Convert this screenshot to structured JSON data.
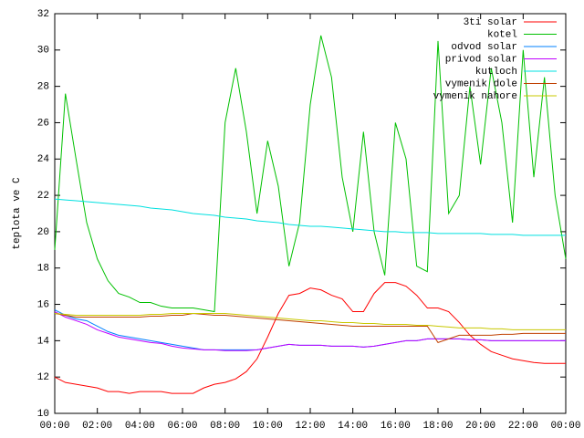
{
  "chart_data": {
    "type": "line",
    "y_label": "teplota ve C",
    "x": [
      0,
      0.5,
      1,
      1.5,
      2,
      2.5,
      3,
      3.5,
      4,
      4.5,
      5,
      5.5,
      6,
      6.5,
      7,
      7.5,
      8,
      8.5,
      9,
      9.5,
      10,
      10.5,
      11,
      11.5,
      12,
      12.5,
      13,
      13.5,
      14,
      14.5,
      15,
      15.5,
      16,
      16.5,
      17,
      17.5,
      18,
      18.5,
      19,
      19.5,
      20,
      20.5,
      21,
      21.5,
      22,
      22.5,
      23,
      23.5,
      24
    ],
    "series": [
      {
        "name": "3ti solar",
        "color": "#ff0000",
        "values": [
          12,
          11.7,
          11.6,
          11.5,
          11.4,
          11.2,
          11.2,
          11.1,
          11.2,
          11.2,
          11.2,
          11.1,
          11.1,
          11.1,
          11.4,
          11.6,
          11.7,
          11.9,
          12.3,
          13,
          14.2,
          15.5,
          16.5,
          16.6,
          16.9,
          16.8,
          16.5,
          16.3,
          15.6,
          15.6,
          16.6,
          17.2,
          17.2,
          17,
          16.5,
          15.8,
          15.8,
          15.6,
          15,
          14.3,
          13.8,
          13.4,
          13.2,
          13,
          12.9,
          12.8,
          12.75,
          12.75,
          12.75
        ]
      },
      {
        "name": "kotel",
        "color": "#00c000",
        "values": [
          19,
          27.6,
          24,
          20.5,
          18.5,
          17.3,
          16.6,
          16.4,
          16.1,
          16.1,
          15.9,
          15.8,
          15.8,
          15.8,
          15.7,
          15.6,
          26,
          29,
          25.5,
          21,
          25,
          22.5,
          18.1,
          20.5,
          27,
          30.8,
          28.5,
          23,
          20,
          25.5,
          20,
          17.6,
          26,
          24,
          18.1,
          17.8,
          30.5,
          21,
          22,
          28,
          23.7,
          29,
          26,
          20.5,
          30,
          23,
          28.5,
          22,
          18.5
        ]
      },
      {
        "name": "odvod solar",
        "color": "#0080ff",
        "values": [
          15.7,
          15.4,
          15.2,
          15.1,
          14.8,
          14.5,
          14.3,
          14.2,
          14.1,
          14,
          13.9,
          13.8,
          13.7,
          13.6,
          13.5,
          13.5,
          13.5,
          13.5,
          13.5,
          13.5,
          13.6,
          13.7,
          13.8,
          13.75,
          13.75,
          13.75,
          13.7,
          13.7,
          13.7,
          13.65,
          13.7,
          13.8,
          13.9,
          14,
          14,
          14.1,
          14.1,
          14.1,
          14.1,
          14.05,
          14.05,
          14,
          14,
          14,
          14,
          14,
          14,
          14,
          14
        ]
      },
      {
        "name": "privod solar",
        "color": "#c000ff",
        "values": [
          15.6,
          15.3,
          15.1,
          14.9,
          14.6,
          14.4,
          14.2,
          14.1,
          14,
          13.9,
          13.85,
          13.7,
          13.6,
          13.55,
          13.5,
          13.5,
          13.45,
          13.45,
          13.45,
          13.5,
          13.6,
          13.7,
          13.8,
          13.75,
          13.75,
          13.75,
          13.7,
          13.7,
          13.7,
          13.65,
          13.7,
          13.8,
          13.9,
          14,
          14,
          14.1,
          14.1,
          14.1,
          14.1,
          14.05,
          14.05,
          14,
          14,
          14,
          14,
          14,
          14,
          14,
          14
        ]
      },
      {
        "name": "kutloch",
        "color": "#00e0e0",
        "values": [
          21.8,
          21.75,
          21.7,
          21.65,
          21.6,
          21.55,
          21.5,
          21.45,
          21.4,
          21.3,
          21.25,
          21.2,
          21.1,
          21,
          20.95,
          20.9,
          20.8,
          20.75,
          20.7,
          20.6,
          20.55,
          20.5,
          20.4,
          20.35,
          20.3,
          20.3,
          20.25,
          20.2,
          20.15,
          20.1,
          20.05,
          20,
          20,
          19.95,
          19.95,
          19.95,
          19.9,
          19.9,
          19.9,
          19.9,
          19.9,
          19.85,
          19.85,
          19.85,
          19.8,
          19.8,
          19.8,
          19.8,
          19.8
        ]
      },
      {
        "name": "vymenik dole",
        "color": "#c04000",
        "values": [
          15.5,
          15.4,
          15.3,
          15.3,
          15.3,
          15.3,
          15.3,
          15.3,
          15.3,
          15.35,
          15.35,
          15.4,
          15.4,
          15.5,
          15.45,
          15.4,
          15.4,
          15.35,
          15.3,
          15.25,
          15.2,
          15.15,
          15.1,
          15.05,
          15,
          14.95,
          14.9,
          14.85,
          14.8,
          14.8,
          14.8,
          14.8,
          14.8,
          14.8,
          14.8,
          14.8,
          13.9,
          14.1,
          14.3,
          14.3,
          14.3,
          14.3,
          14.35,
          14.35,
          14.4,
          14.4,
          14.4,
          14.4,
          14.4
        ]
      },
      {
        "name": "vymenik nahore",
        "color": "#c8c800",
        "values": [
          15.5,
          15.45,
          15.4,
          15.4,
          15.4,
          15.4,
          15.4,
          15.4,
          15.4,
          15.45,
          15.45,
          15.5,
          15.5,
          15.5,
          15.5,
          15.5,
          15.5,
          15.45,
          15.4,
          15.35,
          15.3,
          15.25,
          15.2,
          15.15,
          15.1,
          15.1,
          15.05,
          15,
          15,
          14.95,
          14.95,
          14.9,
          14.9,
          14.9,
          14.85,
          14.85,
          14.8,
          14.75,
          14.7,
          14.7,
          14.7,
          14.65,
          14.65,
          14.6,
          14.6,
          14.6,
          14.6,
          14.6,
          14.6
        ]
      }
    ],
    "xlim": [
      0,
      24
    ],
    "xticks": [
      {
        "value": 0,
        "label": "00:00"
      },
      {
        "value": 2,
        "label": "02:00"
      },
      {
        "value": 4,
        "label": "04:00"
      },
      {
        "value": 6,
        "label": "06:00"
      },
      {
        "value": 8,
        "label": "08:00"
      },
      {
        "value": 10,
        "label": "10:00"
      },
      {
        "value": 12,
        "label": "12:00"
      },
      {
        "value": 14,
        "label": "14:00"
      },
      {
        "value": 16,
        "label": "16:00"
      },
      {
        "value": 18,
        "label": "18:00"
      },
      {
        "value": 20,
        "label": "20:00"
      },
      {
        "value": 22,
        "label": "22:00"
      },
      {
        "value": 24,
        "label": "00:00"
      }
    ],
    "ylim": [
      10,
      32
    ],
    "yticks": [
      10,
      12,
      14,
      16,
      18,
      20,
      22,
      24,
      26,
      28,
      30,
      32
    ],
    "grid": false,
    "legend": "top-right"
  }
}
